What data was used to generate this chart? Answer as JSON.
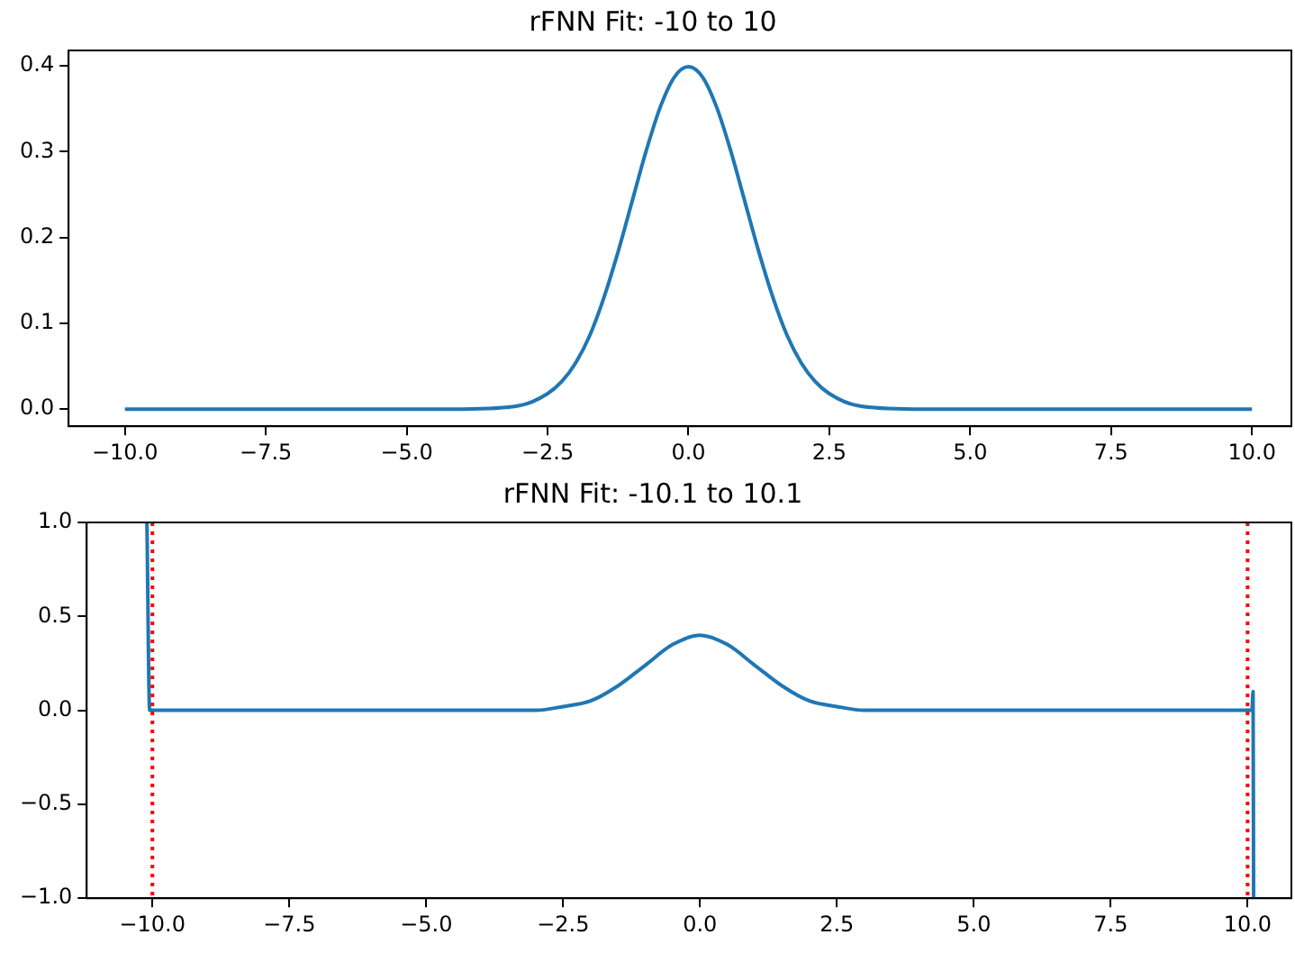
{
  "chart_data": [
    {
      "type": "line",
      "title": "rFNN Fit: -10 to 10",
      "marker": "none",
      "grid": false,
      "legend": false,
      "series": [
        {
          "color": "#1f77b4",
          "x": [
            -10,
            -4,
            -3,
            -2.5,
            -2.25,
            -2,
            -1.75,
            -1.5,
            -1.25,
            -1,
            -0.75,
            -0.5,
            -0.25,
            0,
            0.25,
            0.5,
            0.75,
            1,
            1.25,
            1.5,
            1.75,
            2,
            2.25,
            2.5,
            3,
            4,
            10
          ],
          "values": [
            0,
            0,
            0.004,
            0.018,
            0.032,
            0.054,
            0.086,
            0.13,
            0.183,
            0.242,
            0.301,
            0.352,
            0.387,
            0.399,
            0.387,
            0.352,
            0.301,
            0.242,
            0.183,
            0.13,
            0.086,
            0.054,
            0.032,
            0.018,
            0.004,
            0,
            0
          ]
        }
      ],
      "xlim": [
        -11,
        10.7
      ],
      "ylim": [
        -0.02,
        0.418
      ],
      "xticks": [
        {
          "value": -10,
          "label": "−10.0"
        },
        {
          "value": -7.5,
          "label": "−7.5"
        },
        {
          "value": -5,
          "label": "−5.0"
        },
        {
          "value": -2.5,
          "label": "−2.5"
        },
        {
          "value": 0,
          "label": "0.0"
        },
        {
          "value": 2.5,
          "label": "2.5"
        },
        {
          "value": 5,
          "label": "5.0"
        },
        {
          "value": 7.5,
          "label": "7.5"
        },
        {
          "value": 10,
          "label": "10.0"
        }
      ],
      "yticks": [
        {
          "value": 0,
          "label": "0.0"
        },
        {
          "value": 0.1,
          "label": "0.1"
        },
        {
          "value": 0.2,
          "label": "0.2"
        },
        {
          "value": 0.3,
          "label": "0.3"
        },
        {
          "value": 0.4,
          "label": "0.4"
        }
      ]
    },
    {
      "type": "line",
      "title": "rFNN Fit: -10.1 to 10.1",
      "marker": "none",
      "grid": false,
      "legend": false,
      "series": [
        {
          "color": "#1f77b4",
          "x": [
            -10.1,
            -10.05,
            -4,
            -3,
            -2.5,
            -2,
            -1.5,
            -1,
            -0.5,
            0,
            0.5,
            1,
            1.5,
            2,
            2.5,
            3,
            4,
            10.08,
            10.1,
            10.11
          ],
          "values": [
            1,
            0,
            0,
            0,
            0.02,
            0.05,
            0.13,
            0.24,
            0.35,
            0.4,
            0.35,
            0.24,
            0.13,
            0.05,
            0.02,
            0,
            0,
            0,
            0.1,
            -1
          ]
        }
      ],
      "xlim": [
        -11.2,
        10.8
      ],
      "ylim": [
        -1,
        1
      ],
      "xticks": [
        {
          "value": -10,
          "label": "−10.0"
        },
        {
          "value": -7.5,
          "label": "−7.5"
        },
        {
          "value": -5,
          "label": "−5.0"
        },
        {
          "value": -2.5,
          "label": "−2.5"
        },
        {
          "value": 0,
          "label": "0.0"
        },
        {
          "value": 2.5,
          "label": "2.5"
        },
        {
          "value": 5,
          "label": "5.0"
        },
        {
          "value": 7.5,
          "label": "7.5"
        },
        {
          "value": 10,
          "label": "10.0"
        }
      ],
      "yticks": [
        {
          "value": -1,
          "label": "−1.0"
        },
        {
          "value": -0.5,
          "label": "−0.5"
        },
        {
          "value": 0,
          "label": "0.0"
        },
        {
          "value": 0.5,
          "label": "0.5"
        },
        {
          "value": 1,
          "label": "1.0"
        }
      ],
      "ref_lines": [
        {
          "axis": "x",
          "value": -10,
          "color": "#ff0000",
          "line_style": "dotted"
        },
        {
          "axis": "x",
          "value": 10,
          "color": "#ff0000",
          "line_style": "dotted"
        }
      ]
    }
  ]
}
